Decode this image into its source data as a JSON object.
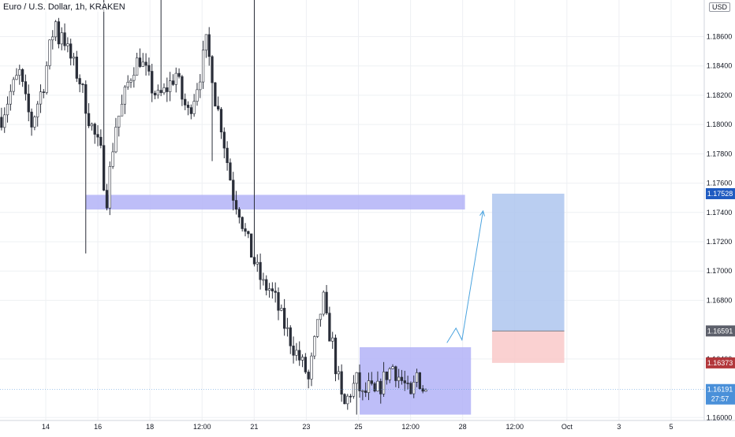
{
  "header": {
    "symbol_title": "Euro / U.S. Dollar, 1h, KRAKEN",
    "currency": "USD"
  },
  "colors": {
    "bull_candle": "#ffffff",
    "bear_candle": "#2a2e39",
    "wick": "#2a2e39",
    "zone_fill": "#b3b3f7",
    "target_fill": "#aec6ef",
    "stop_fill": "#f9c9c9",
    "path_line": "#4aa3df",
    "target_label_bg": "#1f5bc1",
    "entry_label_bg": "#5d606b",
    "stop_label_bg": "#b2373b",
    "price_label_bg": "#4a90d9",
    "grid": "#eef0f3"
  },
  "chart_data": {
    "type": "candlestick",
    "title": "Euro / U.S. Dollar, 1h, KRAKEN",
    "x_tick_labels": [
      "14",
      "16",
      "18",
      "12:00",
      "21",
      "23",
      "25",
      "12:00",
      "28",
      "12:00",
      "Oct",
      "3",
      "5"
    ],
    "y_tick_labels": [
      "1.18600",
      "1.18400",
      "1.18200",
      "1.18000",
      "1.17800",
      "1.17600",
      "1.17400",
      "1.17200",
      "1.17000",
      "1.16800",
      "1.16400",
      "1.16000"
    ],
    "ylim": [
      1.1598,
      1.1885
    ],
    "price_series": {
      "anchors": [
        [
          0,
          1.1805
        ],
        [
          3,
          1.1822
        ],
        [
          6,
          1.1835
        ],
        [
          8,
          1.1815
        ],
        [
          10,
          1.18
        ],
        [
          12,
          1.1815
        ],
        [
          14,
          1.1828
        ],
        [
          16,
          1.1852
        ],
        [
          17,
          1.1862
        ],
        [
          18,
          1.187
        ],
        [
          19,
          1.1858
        ],
        [
          20,
          1.1865
        ],
        [
          22,
          1.185
        ],
        [
          24,
          1.184
        ],
        [
          26,
          1.183
        ],
        [
          27,
          1.1822
        ],
        [
          29,
          1.1805
        ],
        [
          31,
          1.1792
        ],
        [
          33,
          1.178
        ],
        [
          34,
          1.1762
        ],
        [
          35,
          1.175
        ],
        [
          36,
          1.1768
        ],
        [
          37,
          1.1785
        ],
        [
          38,
          1.18
        ],
        [
          40,
          1.1812
        ],
        [
          42,
          1.1828
        ],
        [
          44,
          1.184
        ],
        [
          46,
          1.1845
        ],
        [
          48,
          1.1835
        ],
        [
          50,
          1.1825
        ],
        [
          52,
          1.1818
        ],
        [
          54,
          1.1822
        ],
        [
          56,
          1.1828
        ],
        [
          58,
          1.1835
        ],
        [
          60,
          1.1818
        ],
        [
          62,
          1.1808
        ],
        [
          64,
          1.182
        ],
        [
          66,
          1.1835
        ],
        [
          68,
          1.1855
        ],
        [
          70,
          1.1835
        ],
        [
          71,
          1.1818
        ],
        [
          73,
          1.18
        ],
        [
          75,
          1.1775
        ],
        [
          77,
          1.1752
        ],
        [
          79,
          1.1742
        ],
        [
          81,
          1.1725
        ],
        [
          83,
          1.1712
        ],
        [
          85,
          1.17
        ],
        [
          87,
          1.169
        ],
        [
          89,
          1.1688
        ],
        [
          91,
          1.168
        ],
        [
          93,
          1.1668
        ],
        [
          95,
          1.1658
        ],
        [
          97,
          1.1648
        ],
        [
          99,
          1.164
        ],
        [
          101,
          1.1632
        ],
        [
          102,
          1.1625
        ],
        [
          104,
          1.165
        ],
        [
          106,
          1.1672
        ],
        [
          107,
          1.168
        ],
        [
          108,
          1.1665
        ],
        [
          110,
          1.165
        ],
        [
          111,
          1.1635
        ],
        [
          112,
          1.1625
        ],
        [
          113,
          1.1612
        ],
        [
          114,
          1.1608
        ],
        [
          116,
          1.1618
        ],
        [
          118,
          1.1625
        ],
        [
          120,
          1.1614
        ],
        [
          122,
          1.162
        ],
        [
          124,
          1.1615
        ],
        [
          126,
          1.1622
        ],
        [
          128,
          1.163
        ],
        [
          130,
          1.1635
        ],
        [
          132,
          1.1628
        ],
        [
          134,
          1.1622
        ],
        [
          136,
          1.1612
        ],
        [
          138,
          1.163
        ],
        [
          140,
          1.162
        ],
        [
          141,
          1.1617
        ]
      ]
    },
    "zones": [
      {
        "name": "resistance-zone",
        "from_bar": 28,
        "to_bar": 154,
        "price_low": 1.1742,
        "price_high": 1.1752
      },
      {
        "name": "consolidation-zone",
        "from_bar": 119,
        "to_bar": 156,
        "price_low": 1.1602,
        "price_high": 1.1648
      }
    ],
    "position": {
      "type": "long",
      "entry": 1.16591,
      "target": 1.17528,
      "stop": 1.16373,
      "from_bar": 163,
      "to_bar": 187
    },
    "projected_path": [
      [
        148,
        1.1651
      ],
      [
        151,
        1.1661
      ],
      [
        153,
        1.1653
      ],
      [
        160,
        1.1741
      ]
    ],
    "last_bar": 141,
    "bars_total": 234,
    "price_labels": {
      "target": "1.17528",
      "entry": "1.16591",
      "stop": "1.16373",
      "last_price": "1.16191",
      "countdown": "27:57"
    }
  }
}
